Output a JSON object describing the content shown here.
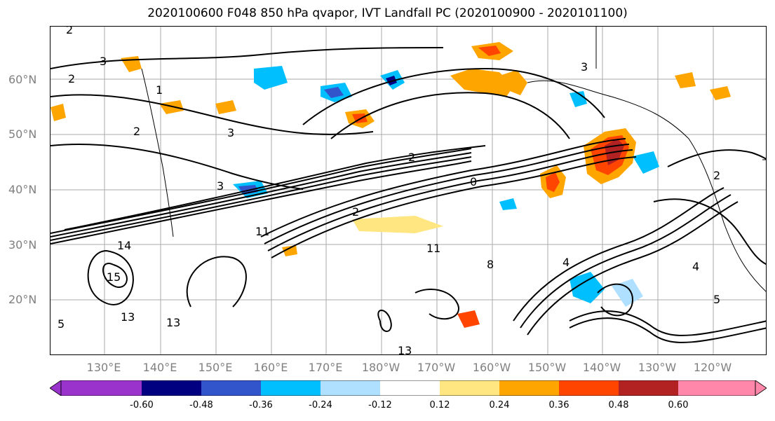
{
  "title": "2020100600 F048 850 hPa qvapor, IVT Landfall PC (2020100900 - 2020101100)",
  "lat_labels": [
    "60°N",
    "50°N",
    "40°N",
    "30°N",
    "20°N"
  ],
  "lon_labels": [
    "130°E",
    "140°E",
    "150°E",
    "160°E",
    "170°E",
    "180°W",
    "170°W",
    "160°W",
    "150°W",
    "140°W",
    "130°W",
    "120°W"
  ],
  "colorbar": {
    "ticks": [
      "-0.60",
      "-0.48",
      "-0.36",
      "-0.24",
      "-0.12",
      "0.12",
      "0.24",
      "0.36",
      "0.48",
      "0.60"
    ],
    "colors": [
      "#9933cc",
      "#000080",
      "#3355cc",
      "#00bfff",
      "#b0e0ff",
      "#ffffff",
      "#ffe680",
      "#ffa500",
      "#ff4500",
      "#b22222",
      "#ff88aa"
    ]
  },
  "contour_labels": [
    "2",
    "3",
    "2",
    "1",
    "2",
    "3",
    "3",
    "2",
    "0",
    "2",
    "3",
    "14",
    "11",
    "11",
    "2",
    "8",
    "4",
    "4",
    "5",
    "13",
    "13",
    "13",
    "15",
    "5"
  ]
}
